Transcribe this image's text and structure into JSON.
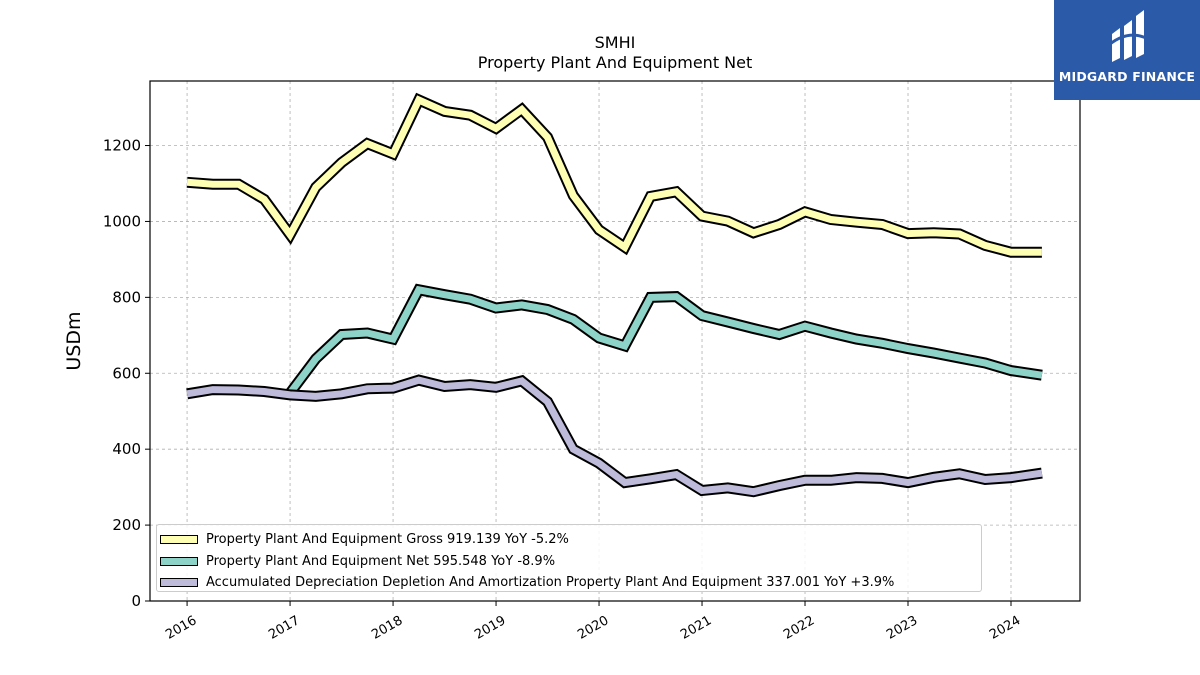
{
  "header": {
    "ticker": "SMHI",
    "metric": "Property Plant And Equipment Net"
  },
  "logo": {
    "text": "MIDGARD FINANCE",
    "icon": "midgard-logo-icon",
    "color": "#2a5aa8"
  },
  "chart_data": {
    "type": "line",
    "title": "SMHI",
    "subtitle": "Property Plant And Equipment Net",
    "ylabel": "USDm",
    "xlabel": "",
    "ylim": [
      0,
      1370
    ],
    "yticks": [
      0,
      200,
      400,
      600,
      800,
      1000,
      1200
    ],
    "xlim": [
      2015.64,
      2024.67
    ],
    "xticks": [
      2016,
      2017,
      2018,
      2019,
      2020,
      2021,
      2022,
      2023,
      2024
    ],
    "xtick_labels": [
      "2016",
      "2017",
      "2018",
      "2019",
      "2020",
      "2021",
      "2022",
      "2023",
      "2024"
    ],
    "grid": true,
    "legend_position": "lower-left",
    "series": [
      {
        "name": "Property Plant And Equipment Gross",
        "legend_label": "Property Plant And Equipment Gross  919.139 YoY -5.2%",
        "color": "#ffffb3",
        "x": [
          2016.0,
          2016.25,
          2016.5,
          2016.75,
          2017.0,
          2017.25,
          2017.5,
          2017.75,
          2018.0,
          2018.25,
          2018.5,
          2018.75,
          2019.0,
          2019.25,
          2019.5,
          2019.75,
          2020.0,
          2020.25,
          2020.5,
          2020.75,
          2021.0,
          2021.25,
          2021.5,
          2021.75,
          2022.0,
          2022.25,
          2022.5,
          2022.75,
          2023.0,
          2023.25,
          2023.5,
          2023.75,
          2024.0,
          2024.3
        ],
        "values": [
          1103,
          1098,
          1098,
          1058,
          965,
          1090,
          1155,
          1205,
          1178,
          1320,
          1290,
          1280,
          1245,
          1295,
          1222,
          1068,
          978,
          932,
          1066,
          1078,
          1014,
          1001,
          970,
          992,
          1025,
          1005,
          998,
          992,
          968,
          970,
          967,
          937,
          919,
          919
        ]
      },
      {
        "name": "Property Plant And Equipment Net",
        "legend_label": "Property Plant And Equipment Net  595.548 YoY -8.9%",
        "color": "#8dd3c7",
        "x": [
          2017.0,
          2017.25,
          2017.5,
          2017.75,
          2018.0,
          2018.25,
          2018.5,
          2018.75,
          2019.0,
          2019.25,
          2019.5,
          2019.75,
          2020.0,
          2020.25,
          2020.5,
          2020.75,
          2021.0,
          2021.25,
          2021.5,
          2021.75,
          2022.0,
          2022.25,
          2022.5,
          2022.75,
          2023.0,
          2023.25,
          2023.5,
          2023.75,
          2024.0,
          2024.3
        ],
        "values": [
          548,
          638,
          702,
          706,
          690,
          820,
          807,
          795,
          772,
          780,
          768,
          742,
          693,
          672,
          800,
          802,
          752,
          735,
          718,
          702,
          724,
          706,
          690,
          679,
          665,
          653,
          640,
          627,
          607,
          595
        ]
      },
      {
        "name": "Accumulated Depreciation Depletion And Amortization Property Plant And Equipment",
        "legend_label": "Accumulated Depreciation Depletion And Amortization Property Plant And Equipment  337.001 YoY +3.9%",
        "color": "#bebada",
        "x": [
          2016.0,
          2016.25,
          2016.5,
          2016.75,
          2017.0,
          2017.25,
          2017.5,
          2017.75,
          2018.0,
          2018.25,
          2018.5,
          2018.75,
          2019.0,
          2019.25,
          2019.5,
          2019.75,
          2020.0,
          2020.25,
          2020.5,
          2020.75,
          2021.0,
          2021.25,
          2021.5,
          2021.75,
          2022.0,
          2022.25,
          2022.5,
          2022.75,
          2023.0,
          2023.25,
          2023.5,
          2023.75,
          2024.0,
          2024.3
        ],
        "values": [
          546,
          557,
          556,
          552,
          543,
          539,
          546,
          559,
          561,
          582,
          565,
          570,
          563,
          580,
          525,
          400,
          363,
          312,
          322,
          333,
          291,
          298,
          288,
          304,
          318,
          318,
          325,
          323,
          312,
          326,
          335,
          320,
          325,
          337
        ]
      }
    ]
  }
}
